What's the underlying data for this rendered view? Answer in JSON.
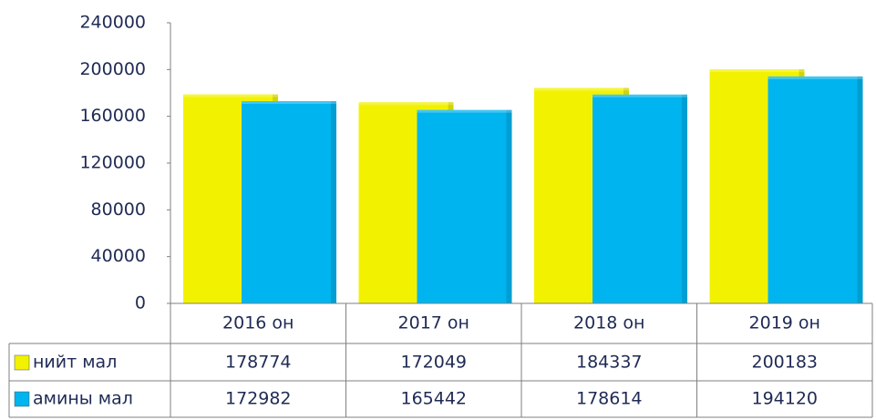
{
  "chart_data": {
    "type": "bar",
    "categories": [
      "2016 он",
      "2017 он",
      "2018 он",
      "2019 он"
    ],
    "series": [
      {
        "name": "нийт мал",
        "color": "#f2f200",
        "values": [
          178774,
          172049,
          184337,
          200183
        ]
      },
      {
        "name": "амины мал",
        "color": "#00b4ef",
        "values": [
          172982,
          165442,
          178614,
          194120
        ]
      }
    ],
    "ylim": [
      0,
      240000
    ],
    "yticks": [
      0,
      40000,
      80000,
      120000,
      160000,
      200000,
      240000
    ],
    "grid": false
  }
}
